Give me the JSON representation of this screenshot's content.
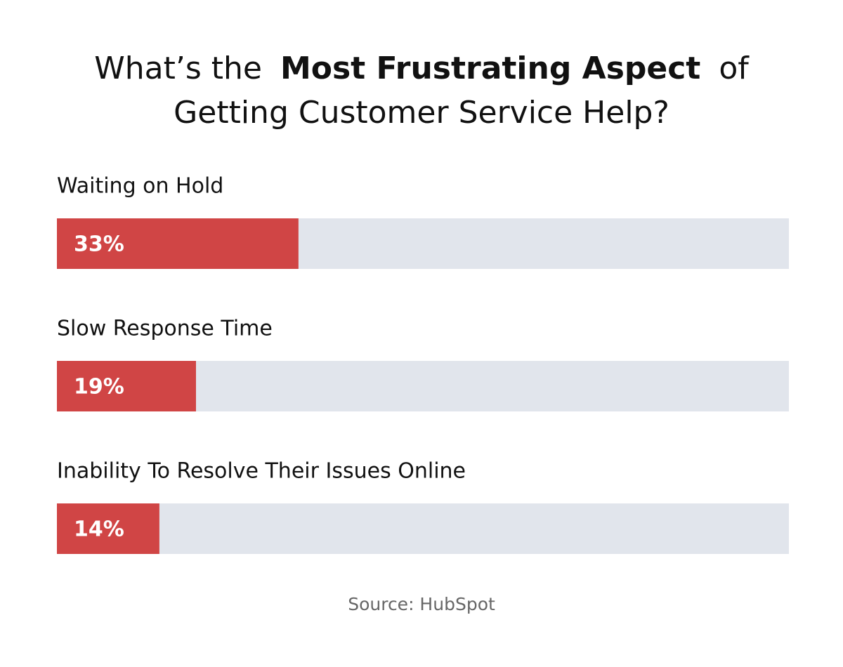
{
  "chart_data": {
    "type": "hbar",
    "title": [
      "What’s the",
      "Most Frustrating Aspect",
      "of",
      "Getting Customer Service Help?"
    ],
    "categories": [
      "Waiting on Hold",
      "Slow Response Time",
      "Inability To Resolve Their Issues Online"
    ],
    "values": [
      33,
      19,
      14
    ],
    "value_labels": [
      "33%",
      "19%",
      "14%"
    ],
    "color": "#d04545",
    "track_color": "#e1e5ec",
    "xlim": [
      0,
      100
    ],
    "source": "Source: HubSpot"
  }
}
